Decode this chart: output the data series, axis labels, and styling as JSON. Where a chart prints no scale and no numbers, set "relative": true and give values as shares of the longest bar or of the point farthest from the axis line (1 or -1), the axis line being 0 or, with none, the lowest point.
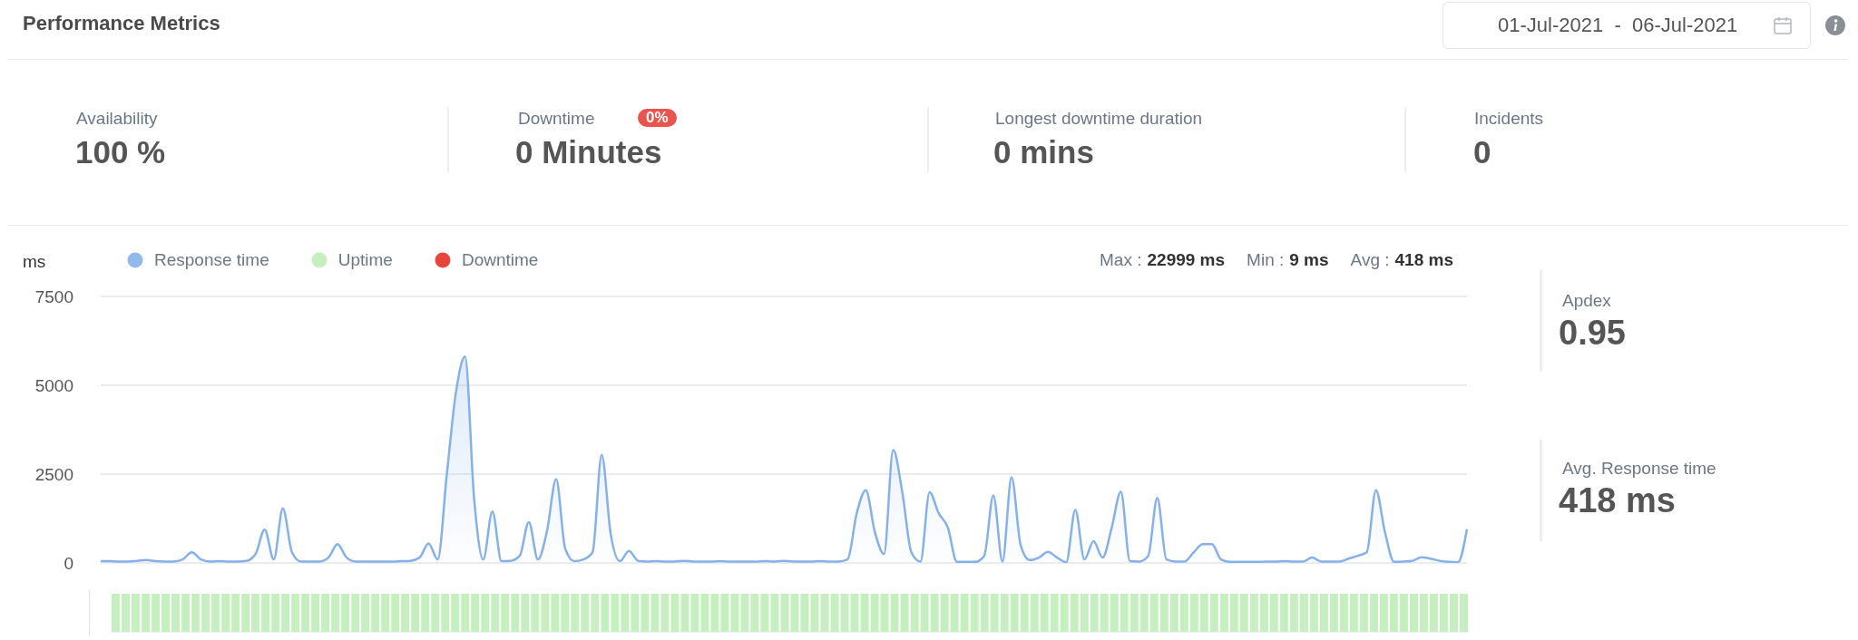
{
  "chart_data": [
    {
      "type": "other",
      "title": "Performance Metrics",
      "subtitle": "01-Jul-2021  -  06-Jul-2021",
      "annotations": [
        "Availability",
        "100 %",
        "Downtime",
        "0%",
        "0 Minutes",
        "Longest downtime duration",
        "0 mins",
        "Incidents",
        "0"
      ]
    },
    {
      "type": "area",
      "ylabel": "ms",
      "ylim": [
        0,
        7500
      ],
      "yticks": [
        0,
        2500,
        5000,
        7500
      ],
      "grid": "y",
      "legend": "top left",
      "tick_labels": "y",
      "marker": "none",
      "annotations": [
        "Max :",
        "22999 ms",
        "Min :",
        "9 ms",
        "Avg :",
        "418 ms"
      ],
      "categories": [
        null,
        null,
        null,
        null,
        null,
        null,
        null,
        null,
        null,
        null,
        null,
        null,
        null,
        null,
        null,
        null,
        null,
        null,
        null,
        null,
        null,
        null,
        null,
        null,
        null,
        null,
        null,
        null,
        null,
        null,
        null,
        null,
        null,
        null,
        null,
        null,
        null,
        null,
        null,
        null,
        null,
        null,
        null,
        null,
        null,
        null,
        null,
        null,
        null,
        null,
        null,
        null,
        null,
        null,
        null,
        null,
        null,
        null,
        null,
        null,
        null,
        null,
        null,
        null,
        null,
        null,
        null,
        null,
        null,
        null,
        null,
        null,
        null,
        null,
        null,
        null,
        null,
        null,
        null,
        null,
        null,
        null,
        null,
        null,
        null,
        null,
        null,
        null,
        null,
        null,
        null,
        null,
        null,
        null,
        null,
        null,
        null,
        null,
        null,
        null,
        null,
        null,
        null,
        null,
        null,
        null,
        null,
        null,
        null,
        null,
        null,
        null,
        null,
        null,
        null,
        null,
        null,
        null,
        null,
        null,
        null,
        null,
        null,
        null,
        null,
        null,
        null,
        null,
        null,
        null,
        null,
        null,
        null,
        null,
        null,
        null,
        null,
        null,
        null,
        null,
        null,
        null,
        null,
        null,
        null,
        null,
        null,
        null,
        null,
        null,
        null
      ],
      "series": [
        {
          "name": "Response time",
          "color": "#86b1e8",
          "values": [
            50,
            50,
            40,
            40,
            60,
            80,
            50,
            40,
            40,
            100,
            300,
            100,
            40,
            50,
            40,
            40,
            60,
            250,
            940,
            100,
            1540,
            300,
            40,
            40,
            40,
            150,
            530,
            150,
            40,
            40,
            40,
            40,
            40,
            50,
            60,
            150,
            550,
            100,
            2500,
            4800,
            5810,
            1800,
            100,
            1450,
            50,
            60,
            200,
            1150,
            100,
            900,
            2360,
            400,
            50,
            100,
            300,
            3040,
            800,
            50,
            340,
            60,
            40,
            50,
            40,
            40,
            60,
            40,
            40,
            40,
            50,
            40,
            40,
            40,
            40,
            50,
            40,
            60,
            40,
            40,
            40,
            50,
            40,
            40,
            100,
            1400,
            2050,
            860,
            250,
            3180,
            2000,
            300,
            40,
            1990,
            1400,
            1000,
            30,
            30,
            30,
            200,
            1900,
            40,
            2410,
            500,
            80,
            150,
            310,
            150,
            20,
            1490,
            100,
            610,
            150,
            1000,
            2000,
            50,
            40,
            200,
            1830,
            100,
            40,
            40,
            300,
            530,
            530,
            100,
            30,
            30,
            30,
            30,
            40,
            40,
            50,
            40,
            40,
            150,
            40,
            40,
            40,
            120,
            200,
            300,
            2050,
            860,
            30,
            40,
            60,
            160,
            120,
            60,
            30,
            20,
            950
          ]
        }
      ]
    },
    {
      "type": "bar",
      "relative": true,
      "stacked": true,
      "tick_labels": false,
      "categories": [
        null,
        null,
        null,
        null,
        null,
        null,
        null,
        null,
        null,
        null,
        null,
        null,
        null,
        null,
        null,
        null,
        null,
        null,
        null,
        null,
        null,
        null,
        null,
        null,
        null,
        null,
        null,
        null,
        null,
        null,
        null,
        null,
        null,
        null,
        null,
        null,
        null,
        null,
        null,
        null,
        null,
        null,
        null,
        null,
        null,
        null,
        null,
        null,
        null,
        null,
        null,
        null,
        null,
        null,
        null,
        null,
        null,
        null,
        null,
        null,
        null,
        null,
        null,
        null,
        null,
        null,
        null,
        null,
        null,
        null,
        null,
        null,
        null,
        null,
        null,
        null,
        null,
        null,
        null,
        null,
        null,
        null,
        null,
        null,
        null,
        null,
        null,
        null,
        null,
        null,
        null,
        null,
        null,
        null,
        null,
        null,
        null,
        null,
        null,
        null,
        null,
        null,
        null,
        null,
        null,
        null,
        null,
        null,
        null,
        null,
        null,
        null,
        null,
        null,
        null,
        null,
        null,
        null,
        null,
        null,
        null,
        null,
        null,
        null,
        null,
        null,
        null,
        null,
        null,
        null,
        null,
        null,
        null,
        null,
        null,
        null
      ],
      "series": [
        {
          "name": "Uptime",
          "color": "#c6efc0",
          "values": [
            1,
            1,
            1,
            1,
            1,
            1,
            1,
            1,
            1,
            1,
            1,
            1,
            1,
            1,
            1,
            1,
            1,
            1,
            1,
            1,
            1,
            1,
            1,
            1,
            1,
            1,
            1,
            1,
            1,
            1,
            1,
            1,
            1,
            1,
            1,
            1,
            1,
            1,
            1,
            1,
            1,
            1,
            1,
            1,
            1,
            1,
            1,
            1,
            1,
            1,
            1,
            1,
            1,
            1,
            1,
            1,
            1,
            1,
            1,
            1,
            1,
            1,
            1,
            1,
            1,
            1,
            1,
            1,
            1,
            1,
            1,
            1,
            1,
            1,
            1,
            1,
            1,
            1,
            1,
            1,
            1,
            1,
            1,
            1,
            1,
            1,
            1,
            1,
            1,
            1,
            1,
            1,
            1,
            1,
            1,
            1,
            1,
            1,
            1,
            1,
            1,
            1,
            1,
            1,
            1,
            1,
            1,
            1,
            1,
            1,
            1,
            1,
            1,
            1,
            1,
            1,
            1,
            1,
            1,
            1,
            1,
            1,
            1,
            1,
            1,
            1,
            1,
            1,
            1,
            1,
            1,
            1,
            1,
            1,
            1,
            1
          ]
        },
        {
          "name": "Downtime",
          "color": "#e8453c",
          "values": [
            null,
            null,
            null,
            null,
            null,
            null,
            null,
            null,
            null,
            null,
            null,
            null,
            null,
            null,
            null,
            null,
            null,
            null,
            null,
            null,
            null,
            null,
            null,
            null,
            null,
            null,
            null,
            null,
            null,
            null,
            null,
            null,
            null,
            null,
            null,
            null,
            null,
            null,
            null,
            null,
            null,
            null,
            null,
            null,
            null,
            null,
            null,
            null,
            null,
            null,
            null,
            null,
            null,
            null,
            null,
            null,
            null,
            null,
            null,
            null,
            null,
            null,
            null,
            null,
            null,
            null,
            null,
            null,
            null,
            null,
            null,
            null,
            null,
            null,
            null,
            null,
            null,
            null,
            null,
            null,
            null,
            null,
            null,
            null,
            null,
            null,
            null,
            null,
            null,
            null,
            null,
            null,
            null,
            null,
            null,
            null,
            null,
            null,
            null,
            null,
            null,
            null,
            null,
            null,
            null,
            null,
            null,
            null,
            null,
            null,
            null,
            null,
            null,
            null,
            null,
            null,
            null,
            null,
            null,
            null,
            null,
            null,
            null,
            null,
            null,
            null,
            null,
            null,
            null,
            null,
            null,
            null,
            null,
            null,
            null,
            null
          ]
        }
      ]
    },
    {
      "type": "other",
      "annotations": [
        "Apdex",
        "0.95",
        "Avg. Response time",
        "418 ms"
      ]
    }
  ]
}
